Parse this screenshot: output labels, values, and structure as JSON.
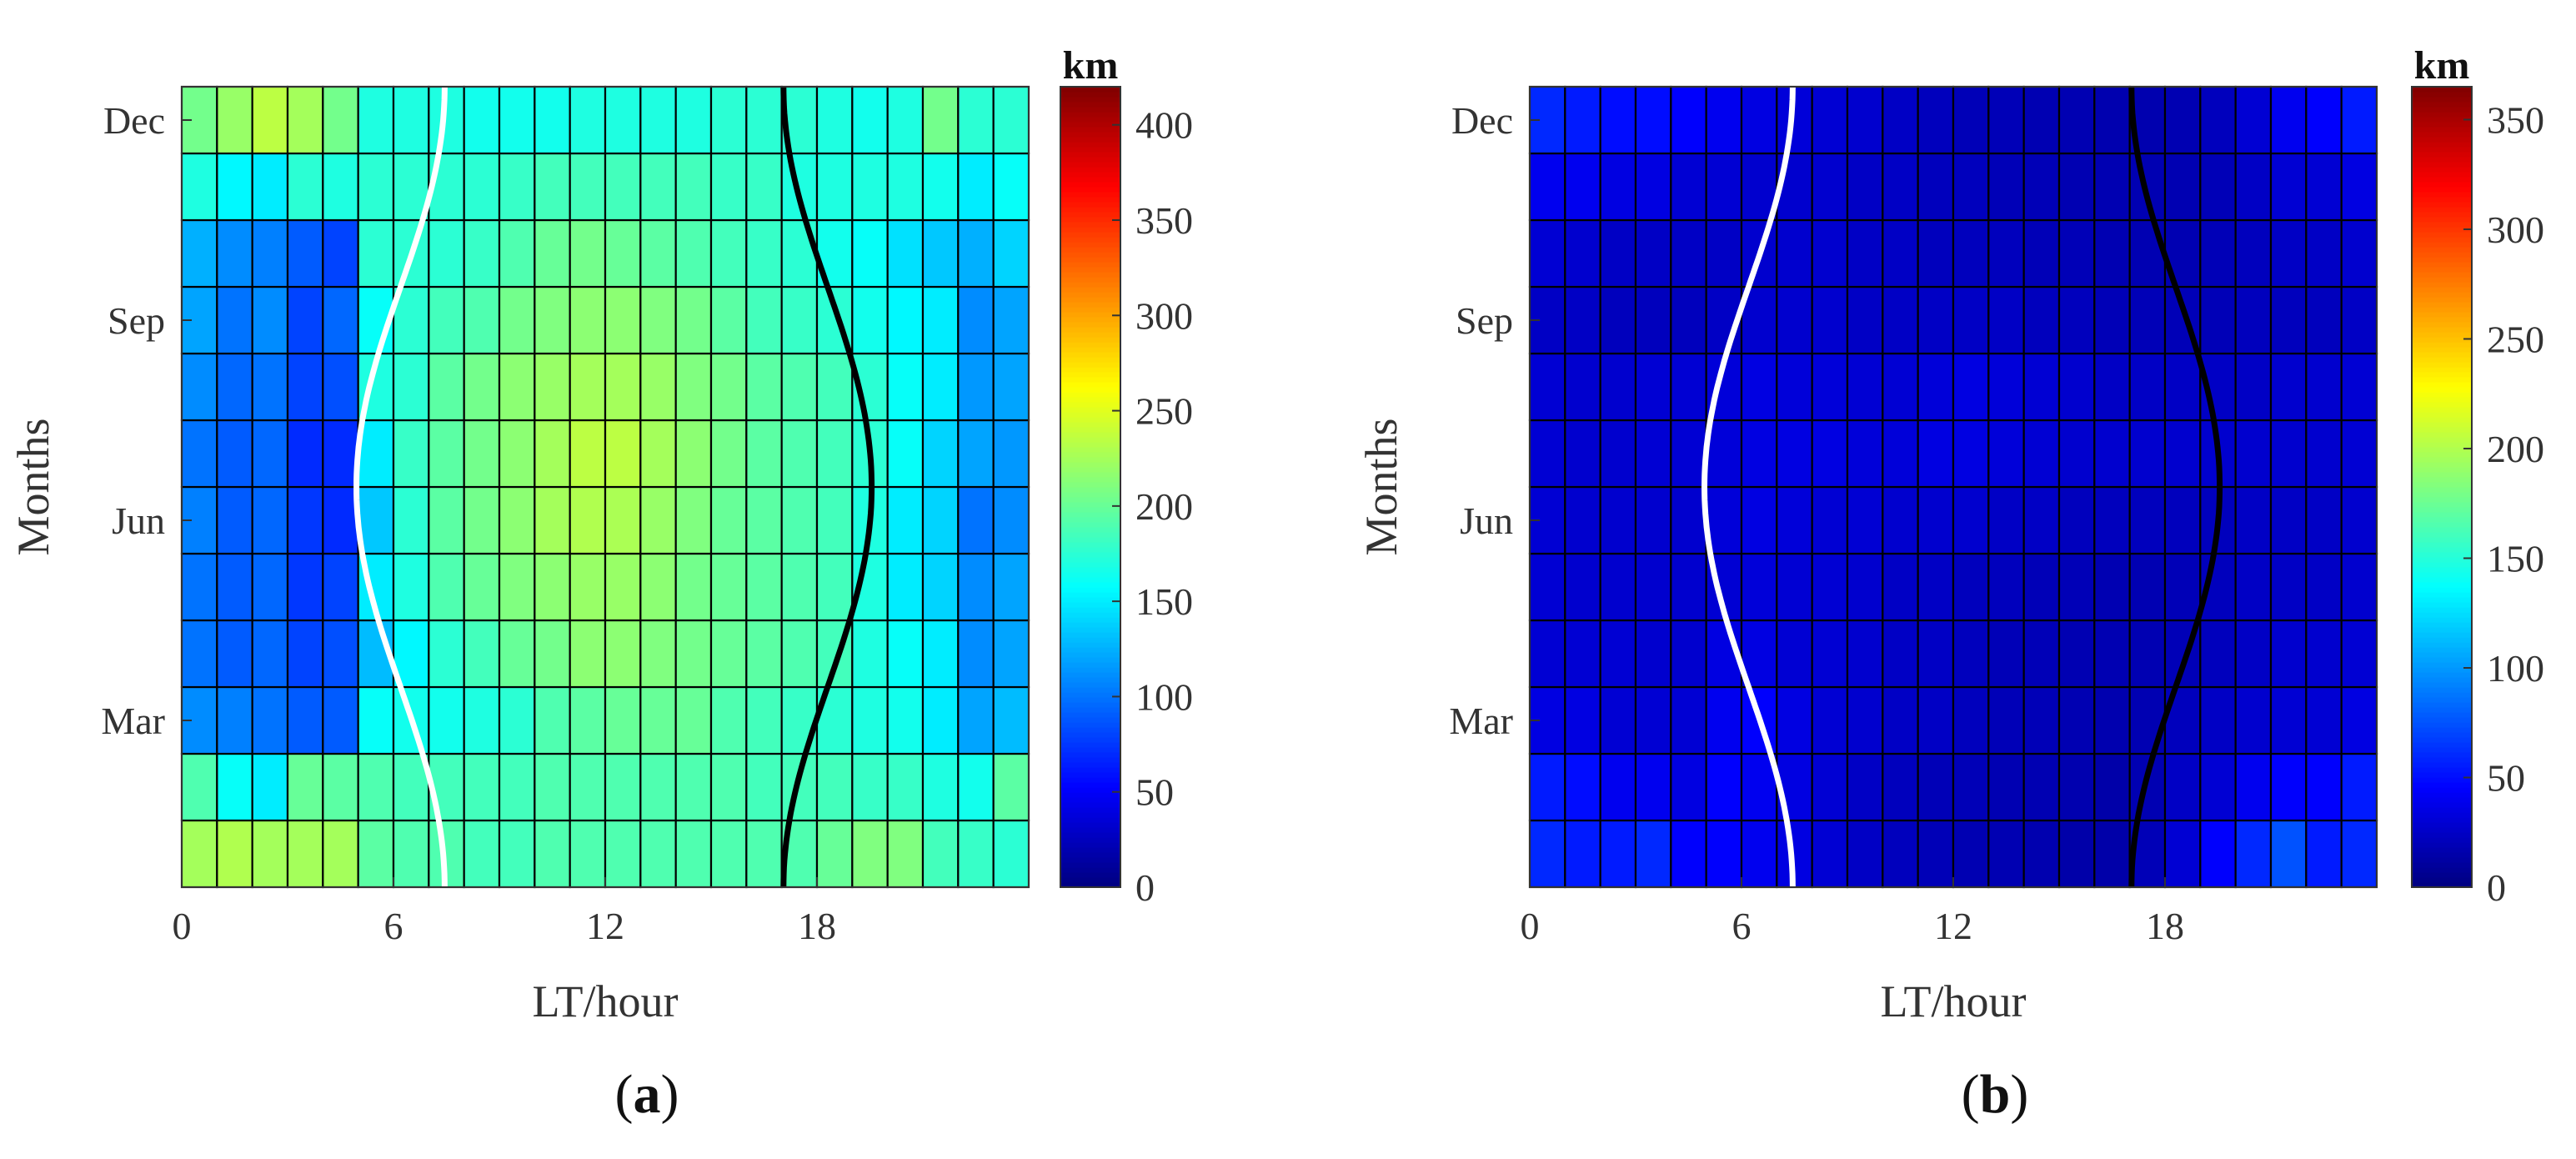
{
  "chart_data": [
    {
      "type": "heatmap",
      "panel_label_prefix": "(",
      "panel_label_letter": "a",
      "panel_label_suffix": ")",
      "xlabel": "LT/hour",
      "ylabel": "Months",
      "x_ticks": [
        "0",
        "6",
        "12",
        "18"
      ],
      "x_tick_values": [
        0,
        6,
        12,
        18
      ],
      "xlim": [
        0,
        24
      ],
      "y_ticks": [
        "Mar",
        "Jun",
        "Sep",
        "Dec"
      ],
      "y_tick_months": [
        3,
        6,
        9,
        12
      ],
      "rows_months": [
        "Jan",
        "Feb",
        "Mar",
        "Apr",
        "May",
        "Jun",
        "Jul",
        "Aug",
        "Sep",
        "Oct",
        "Nov",
        "Dec"
      ],
      "colorbar": {
        "unit": "km",
        "min": 0,
        "max": 420,
        "ticks": [
          0,
          50,
          100,
          150,
          200,
          250,
          300,
          350,
          400
        ]
      },
      "values": [
        [
          225,
          230,
          225,
          225,
          225,
          195,
          190,
          190,
          185,
          185,
          190,
          190,
          190,
          190,
          190,
          190,
          190,
          190,
          200,
          210,
          210,
          185,
          180,
          175
        ],
        [
          190,
          160,
          150,
          200,
          195,
          190,
          185,
          185,
          185,
          185,
          190,
          190,
          190,
          190,
          190,
          190,
          185,
          185,
          185,
          180,
          180,
          170,
          165,
          195
        ],
        [
          110,
          105,
          100,
          90,
          90,
          160,
          165,
          165,
          170,
          175,
          190,
          195,
          200,
          200,
          200,
          190,
          185,
          180,
          175,
          170,
          165,
          150,
          120,
          130
        ],
        [
          100,
          90,
          95,
          80,
          85,
          130,
          155,
          175,
          185,
          200,
          205,
          215,
          215,
          210,
          205,
          200,
          195,
          190,
          185,
          170,
          160,
          150,
          110,
          120
        ],
        [
          100,
          90,
          95,
          75,
          80,
          150,
          170,
          190,
          200,
          210,
          215,
          220,
          220,
          215,
          205,
          200,
          195,
          190,
          185,
          170,
          150,
          140,
          110,
          120
        ],
        [
          105,
          90,
          95,
          75,
          70,
          135,
          175,
          195,
          205,
          215,
          225,
          230,
          228,
          220,
          210,
          200,
          195,
          190,
          185,
          170,
          150,
          140,
          100,
          110
        ],
        [
          100,
          90,
          95,
          70,
          70,
          150,
          180,
          195,
          205,
          215,
          225,
          235,
          235,
          225,
          215,
          205,
          195,
          190,
          185,
          175,
          160,
          140,
          120,
          115
        ],
        [
          110,
          95,
          100,
          80,
          85,
          170,
          175,
          195,
          205,
          215,
          220,
          225,
          225,
          220,
          210,
          205,
          195,
          190,
          185,
          175,
          160,
          150,
          115,
          120
        ],
        [
          120,
          100,
          110,
          80,
          95,
          160,
          175,
          185,
          190,
          205,
          210,
          215,
          215,
          210,
          205,
          195,
          185,
          180,
          175,
          165,
          155,
          150,
          110,
          120
        ],
        [
          125,
          110,
          105,
          90,
          80,
          175,
          175,
          175,
          180,
          190,
          200,
          205,
          200,
          195,
          190,
          185,
          180,
          175,
          165,
          160,
          145,
          135,
          125,
          140
        ],
        [
          170,
          155,
          150,
          175,
          170,
          175,
          175,
          175,
          175,
          180,
          185,
          185,
          185,
          185,
          185,
          180,
          180,
          170,
          170,
          170,
          170,
          165,
          150,
          160
        ],
        [
          205,
          220,
          235,
          225,
          205,
          170,
          170,
          170,
          165,
          165,
          165,
          170,
          170,
          170,
          170,
          175,
          175,
          175,
          170,
          165,
          170,
          205,
          175,
          175
        ]
      ],
      "sunrise_line_color": "#ffffff",
      "sunset_line_color": "#000000"
    },
    {
      "type": "heatmap",
      "panel_label_prefix": "(",
      "panel_label_letter": "b",
      "panel_label_suffix": ")",
      "xlabel": "LT/hour",
      "ylabel": "Months",
      "x_ticks": [
        "0",
        "6",
        "12",
        "18"
      ],
      "x_tick_values": [
        0,
        6,
        12,
        18
      ],
      "xlim": [
        0,
        24
      ],
      "y_ticks": [
        "Mar",
        "Jun",
        "Sep",
        "Dec"
      ],
      "y_tick_months": [
        3,
        6,
        9,
        12
      ],
      "rows_months": [
        "Jan",
        "Feb",
        "Mar",
        "Apr",
        "May",
        "Jun",
        "Jul",
        "Aug",
        "Sep",
        "Oct",
        "Nov",
        "Dec"
      ],
      "colorbar": {
        "unit": "km",
        "min": 0,
        "max": 365,
        "ticks": [
          0,
          50,
          100,
          150,
          200,
          250,
          300,
          350
        ]
      },
      "values": [
        [
          60,
          55,
          55,
          60,
          45,
          45,
          40,
          35,
          30,
          25,
          22,
          20,
          18,
          18,
          17,
          15,
          15,
          20,
          30,
          45,
          60,
          75,
          55,
          60
        ],
        [
          55,
          50,
          40,
          40,
          35,
          45,
          40,
          35,
          30,
          25,
          22,
          20,
          20,
          18,
          18,
          17,
          15,
          18,
          25,
          30,
          40,
          45,
          45,
          55
        ],
        [
          35,
          35,
          30,
          30,
          30,
          40,
          45,
          35,
          30,
          28,
          25,
          25,
          22,
          20,
          20,
          18,
          17,
          18,
          22,
          25,
          28,
          30,
          30,
          35
        ],
        [
          30,
          30,
          30,
          28,
          28,
          35,
          35,
          30,
          30,
          28,
          25,
          25,
          22,
          20,
          20,
          18,
          18,
          18,
          20,
          22,
          25,
          28,
          28,
          30
        ],
        [
          30,
          28,
          28,
          28,
          28,
          30,
          32,
          30,
          30,
          28,
          25,
          25,
          22,
          22,
          20,
          20,
          18,
          18,
          20,
          22,
          25,
          25,
          25,
          28
        ],
        [
          30,
          28,
          28,
          28,
          28,
          32,
          35,
          32,
          30,
          30,
          28,
          28,
          28,
          25,
          25,
          22,
          22,
          22,
          22,
          22,
          25,
          25,
          25,
          28
        ],
        [
          30,
          28,
          28,
          30,
          30,
          32,
          35,
          35,
          35,
          32,
          32,
          35,
          35,
          32,
          30,
          28,
          28,
          28,
          28,
          28,
          28,
          28,
          28,
          30
        ],
        [
          30,
          28,
          28,
          30,
          30,
          32,
          35,
          32,
          32,
          30,
          30,
          32,
          35,
          32,
          30,
          28,
          25,
          25,
          25,
          25,
          25,
          28,
          28,
          30
        ],
        [
          25,
          25,
          22,
          22,
          22,
          25,
          28,
          28,
          28,
          25,
          25,
          25,
          25,
          25,
          22,
          22,
          20,
          20,
          20,
          20,
          22,
          22,
          22,
          25
        ],
        [
          30,
          28,
          25,
          25,
          25,
          25,
          28,
          28,
          28,
          25,
          25,
          22,
          22,
          22,
          20,
          20,
          18,
          18,
          18,
          20,
          22,
          25,
          25,
          28
        ],
        [
          40,
          40,
          35,
          35,
          30,
          30,
          28,
          28,
          28,
          25,
          25,
          22,
          22,
          20,
          20,
          18,
          18,
          18,
          18,
          20,
          25,
          30,
          30,
          35
        ],
        [
          60,
          55,
          50,
          50,
          45,
          40,
          35,
          32,
          30,
          28,
          25,
          22,
          20,
          20,
          18,
          18,
          17,
          17,
          18,
          22,
          30,
          40,
          45,
          55
        ]
      ],
      "sunrise_line_color": "#ffffff",
      "sunset_line_color": "#000000"
    }
  ]
}
